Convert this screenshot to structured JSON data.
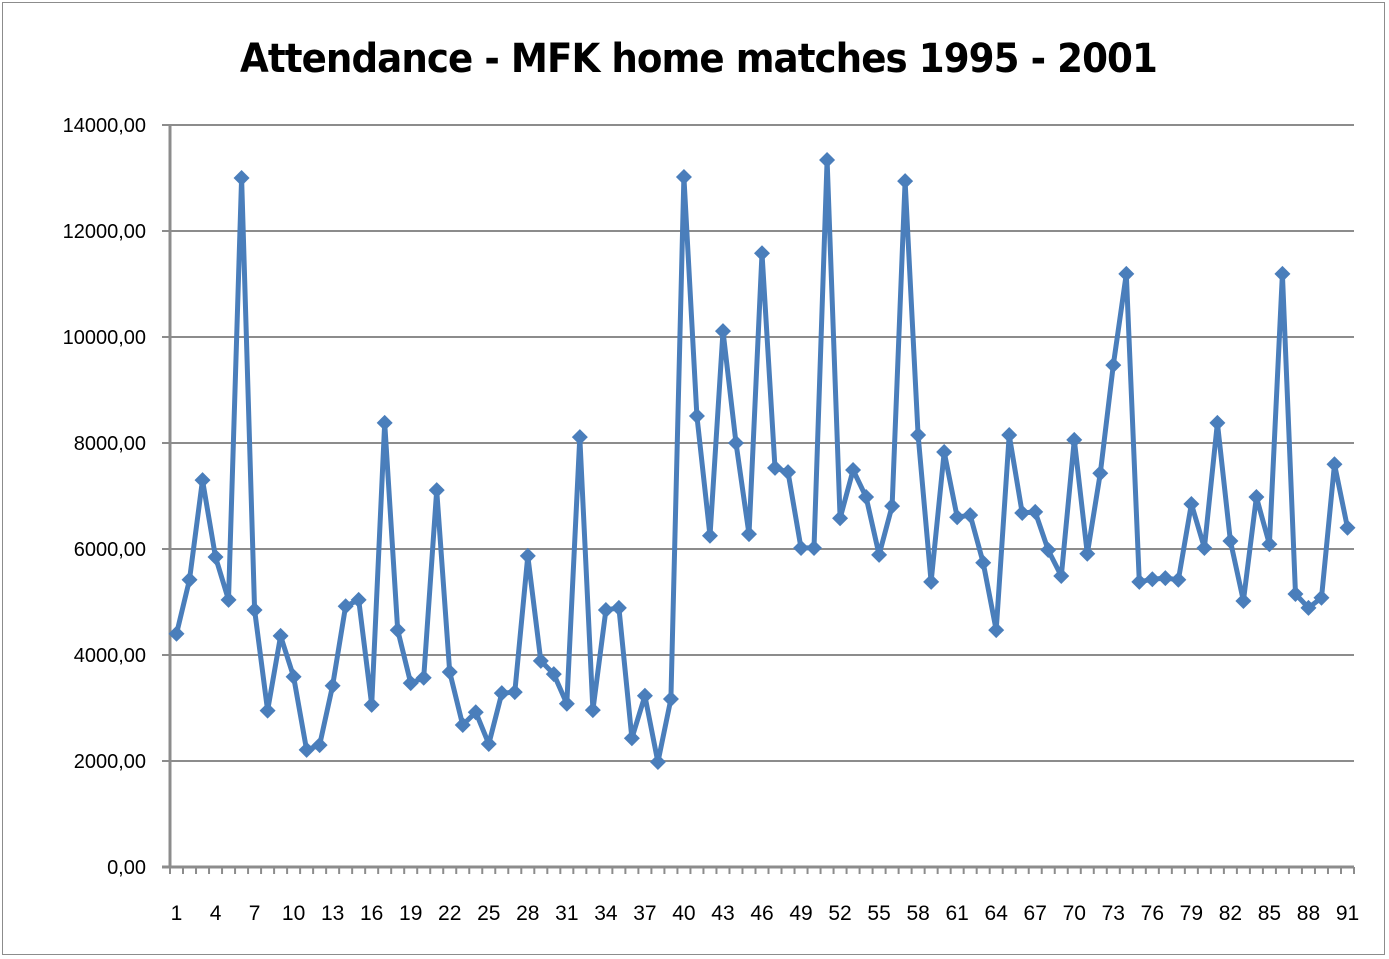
{
  "chart_data": {
    "type": "line",
    "title": "Attendance  - MFK home matches 1995 - 2001",
    "xlabel": "",
    "ylabel": "",
    "ylim": [
      0,
      14000
    ],
    "yticks": [
      "0,00",
      "2000,00",
      "4000,00",
      "6000,00",
      "8000,00",
      "10000,00",
      "12000,00",
      "14000,00"
    ],
    "xtick_labels": [
      "1",
      "4",
      "7",
      "10",
      "13",
      "16",
      "19",
      "22",
      "25",
      "28",
      "31",
      "34",
      "37",
      "40",
      "43",
      "46",
      "49",
      "52",
      "55",
      "58",
      "61",
      "64",
      "67",
      "70",
      "73",
      "76",
      "79",
      "82",
      "85",
      "88",
      "91"
    ],
    "grid": true,
    "legend": null,
    "marker": "diamond",
    "color": "#4a7ebb",
    "x": [
      1,
      2,
      3,
      4,
      5,
      6,
      7,
      8,
      9,
      10,
      11,
      12,
      13,
      14,
      15,
      16,
      17,
      18,
      19,
      20,
      21,
      22,
      23,
      24,
      25,
      26,
      27,
      28,
      29,
      30,
      31,
      32,
      33,
      34,
      35,
      36,
      37,
      38,
      39,
      40,
      41,
      42,
      43,
      44,
      45,
      46,
      47,
      48,
      49,
      50,
      51,
      52,
      53,
      54,
      55,
      56,
      57,
      58,
      59,
      60,
      61,
      62,
      63,
      64,
      65,
      66,
      67,
      68,
      69,
      70,
      71,
      72,
      73,
      74,
      75,
      76,
      77,
      78,
      79,
      80,
      81,
      82,
      83,
      84,
      85,
      86,
      87,
      88,
      89,
      90,
      91
    ],
    "series": [
      {
        "name": "Attendance",
        "values": [
          4400,
          5420,
          7300,
          5850,
          5040,
          13000,
          4850,
          2950,
          4360,
          3590,
          2210,
          2300,
          3420,
          4920,
          5040,
          3060,
          8380,
          4470,
          3470,
          3570,
          7110,
          3680,
          2680,
          2920,
          2320,
          3280,
          3300,
          5870,
          3890,
          3640,
          3080,
          8110,
          2960,
          4850,
          4890,
          2430,
          3230,
          1980,
          3170,
          13020,
          8510,
          6250,
          10110,
          8000,
          6280,
          11580,
          7530,
          7450,
          6020,
          6020,
          13340,
          6580,
          7490,
          6980,
          5890,
          6810,
          12940,
          8150,
          5380,
          7830,
          6600,
          6640,
          5740,
          4470,
          8150,
          6680,
          6700,
          5980,
          5490,
          8060,
          5910,
          7430,
          9470,
          11190,
          5380,
          5430,
          5450,
          5420,
          6850,
          6020,
          8380,
          6150,
          5020,
          6980,
          6090,
          11190,
          5150,
          4890,
          5080,
          7600,
          6400
        ]
      }
    ]
  }
}
